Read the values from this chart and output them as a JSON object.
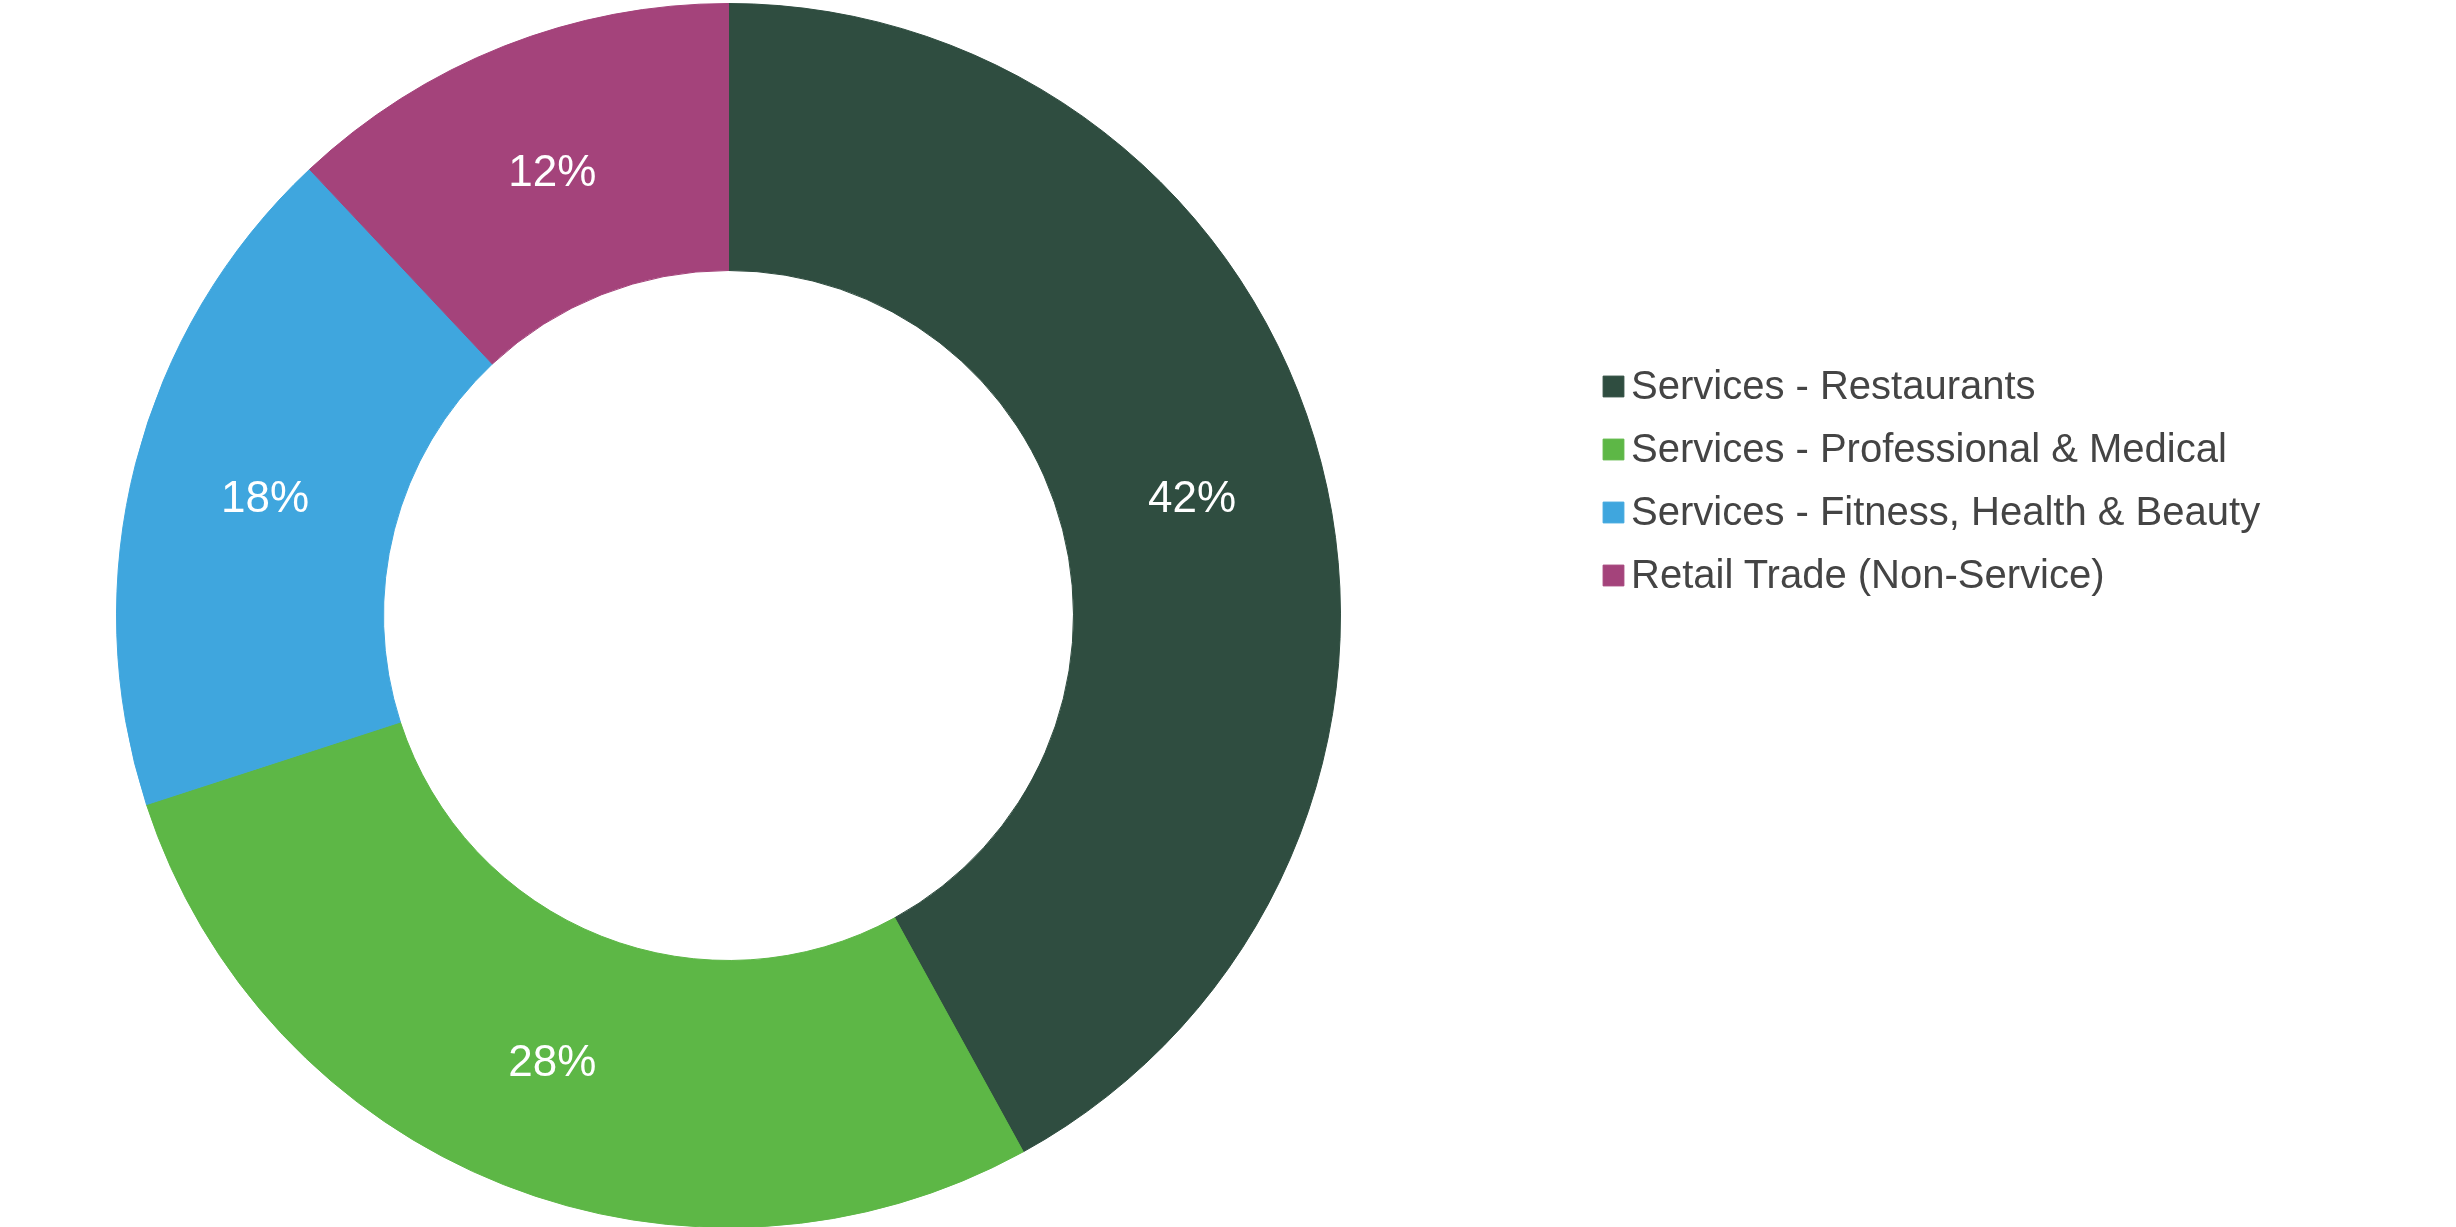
{
  "chart_data": {
    "type": "donut",
    "categories": [
      "Services - Restaurants",
      "Services - Professional & Medical",
      "Services - Fitness, Health & Beauty",
      "Retail Trade (Non-Service)"
    ],
    "values": [
      42,
      28,
      18,
      12
    ],
    "colors": [
      "#2f4d40",
      "#5db746",
      "#3fa6de",
      "#a4437b"
    ],
    "value_labels": [
      "42%",
      "28%",
      "18%",
      "12%"
    ],
    "legend": "right"
  }
}
